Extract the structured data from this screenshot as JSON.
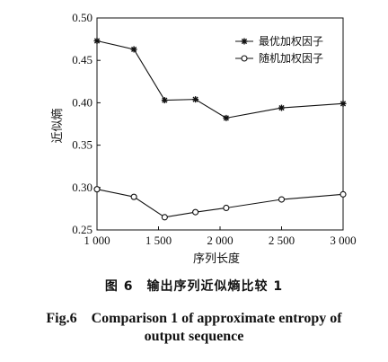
{
  "chart_data": {
    "type": "line",
    "x": [
      1000,
      1300,
      1550,
      1800,
      2050,
      2500,
      3000
    ],
    "x_ticks": [
      1000,
      1500,
      2000,
      2500,
      3000
    ],
    "x_tick_labels": [
      "1 000",
      "1 500",
      "2 000",
      "2 500",
      "3 000"
    ],
    "y_ticks": [
      0.25,
      0.3,
      0.35,
      0.4,
      0.45,
      0.5
    ],
    "y_tick_labels": [
      "0.25",
      "0.30",
      "0.35",
      "0.40",
      "0.45",
      "0.50"
    ],
    "xlim": [
      1000,
      3000
    ],
    "ylim": [
      0.25,
      0.5
    ],
    "xlabel": "序列长度",
    "ylabel": "近似熵",
    "series": [
      {
        "name": "最优加权因子",
        "marker": "star",
        "values": [
          0.473,
          0.463,
          0.403,
          0.404,
          0.382,
          0.394,
          0.399
        ]
      },
      {
        "name": "随机加权因子",
        "marker": "circle",
        "values": [
          0.298,
          0.289,
          0.265,
          0.271,
          0.276,
          0.286,
          0.292
        ]
      }
    ],
    "legend_position": "top-right",
    "grid": false
  },
  "caption": {
    "zh": "图 6　输出序列近似熵比较 1",
    "en_line1": "Fig.6　Comparison 1 of approximate entropy of",
    "en_line2": "output sequence"
  },
  "colors": {
    "line": "#111111",
    "background": "#ffffff"
  }
}
